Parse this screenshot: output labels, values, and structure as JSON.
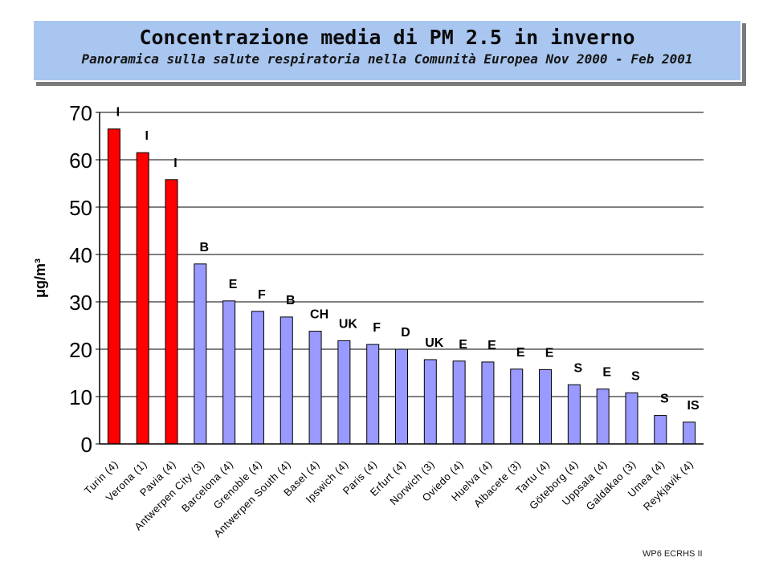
{
  "header": {
    "title": "Concentrazione media di PM 2.5 in inverno",
    "subtitle": "Panoramica  sulla salute respiratoria nella Comunità Europea  Nov 2000 - Feb 2001"
  },
  "footer": "WP6 ECRHS II",
  "chart_data": {
    "type": "bar",
    "ylabel": "μg/m³",
    "ylim": [
      0,
      70
    ],
    "yticks": [
      0,
      10,
      20,
      30,
      40,
      50,
      60,
      70
    ],
    "grid": true,
    "categories": [
      "Turin (4)",
      "Verona (1)",
      "Pavia (4)",
      "Antwerpen City (3)",
      "Barcelona (4)",
      "Grenoble (4)",
      "Antwerpen South (4)",
      "Basel (4)",
      "Ipswich (4)",
      "Paris (4)",
      "Erfurt (4)",
      "Norwich (3)",
      "Oviedo (4)",
      "Huelva (4)",
      "Albacete (3)",
      "Tartu (4)",
      "Göteborg (4)",
      "Uppsala (4)",
      "Galdakao (3)",
      "Umea (4)",
      "Reykjavik (4)"
    ],
    "values": [
      66.5,
      61.5,
      55.8,
      38,
      30.2,
      28,
      26.8,
      23.8,
      21.8,
      21,
      20,
      17.8,
      17.5,
      17.3,
      15.8,
      15.7,
      12.5,
      11.6,
      10.8,
      6,
      4.6
    ],
    "country_codes": [
      "I",
      "I",
      "I",
      "B",
      "E",
      "F",
      "B",
      "CH",
      "UK",
      "F",
      "D",
      "UK",
      "E",
      "E",
      "E",
      "E",
      "S",
      "E",
      "S",
      "S",
      "IS"
    ],
    "colors": [
      "#ff0000",
      "#ff0000",
      "#ff0000",
      "#9999ff",
      "#9999ff",
      "#9999ff",
      "#9999ff",
      "#9999ff",
      "#9999ff",
      "#9999ff",
      "#9999ff",
      "#9999ff",
      "#9999ff",
      "#9999ff",
      "#9999ff",
      "#9999ff",
      "#9999ff",
      "#9999ff",
      "#9999ff",
      "#9999ff",
      "#9999ff"
    ]
  }
}
